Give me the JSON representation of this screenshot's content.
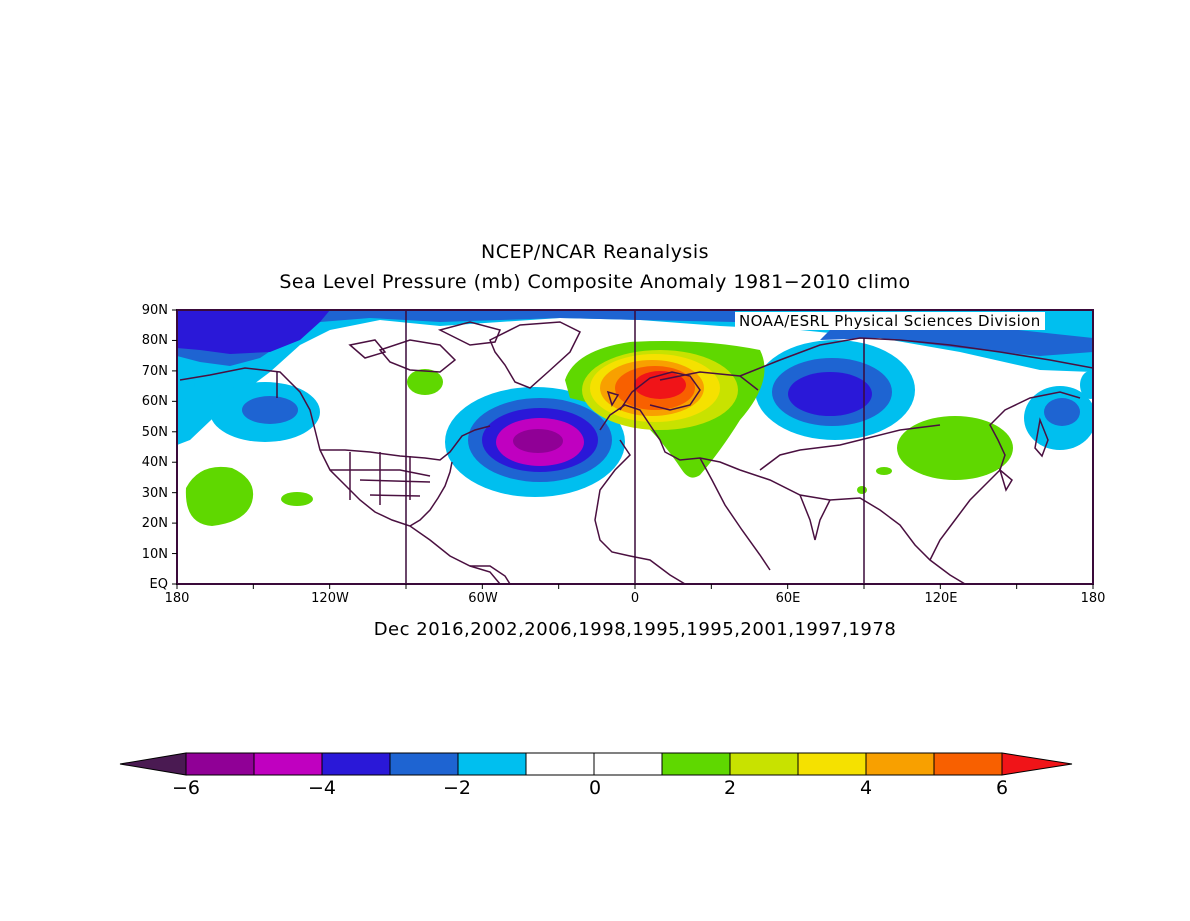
{
  "header": {
    "title": "NCEP/NCAR Reanalysis",
    "subtitle": "Sea Level Pressure (mb) Composite Anomaly 1981-2010 climo"
  },
  "map": {
    "credit": "NOAA/ESRL Physical Sciences Division",
    "lat_labels": [
      "90N",
      "80N",
      "70N",
      "60N",
      "50N",
      "40N",
      "30N",
      "20N",
      "10N",
      "EQ"
    ],
    "lon_labels": [
      "180",
      "120W",
      "60W",
      "0",
      "60E",
      "120E",
      "180"
    ],
    "domain": "Northern Hemisphere 0-90N, 180W-180E",
    "projection": "cylindrical equidistant"
  },
  "caption": "Dec 2016,2002,2006,1998,1995,1995,2001,1997,1978",
  "colorbar": {
    "colors": [
      "#4a1a52",
      "#900096",
      "#c000c0",
      "#2a18d8",
      "#1e64d2",
      "#00bfef",
      "#ffffff",
      "#ffffff",
      "#5fd800",
      "#c8e200",
      "#f5e100",
      "#f8a000",
      "#f86000",
      "#f01418"
    ],
    "tick_labels": [
      "-6",
      "-4",
      "-2",
      "0",
      "2",
      "4",
      "6"
    ],
    "tick_values": [
      -6,
      -4,
      -2,
      0,
      2,
      4,
      6
    ]
  },
  "anomaly_features": [
    {
      "region": "Scandinavia / North Sea",
      "sign": "positive",
      "peak_mb": 6
    },
    {
      "region": "Central North Atlantic",
      "sign": "negative",
      "peak_mb": -5
    },
    {
      "region": "Western Siberia",
      "sign": "negative",
      "peak_mb": -4
    },
    {
      "region": "Arctic / North Pacific high latitudes",
      "sign": "negative",
      "peak_mb": -3
    },
    {
      "region": "East Asia / China",
      "sign": "positive",
      "peak_mb": 2
    },
    {
      "region": "Central North Pacific subtropics",
      "sign": "positive",
      "peak_mb": 2
    }
  ]
}
